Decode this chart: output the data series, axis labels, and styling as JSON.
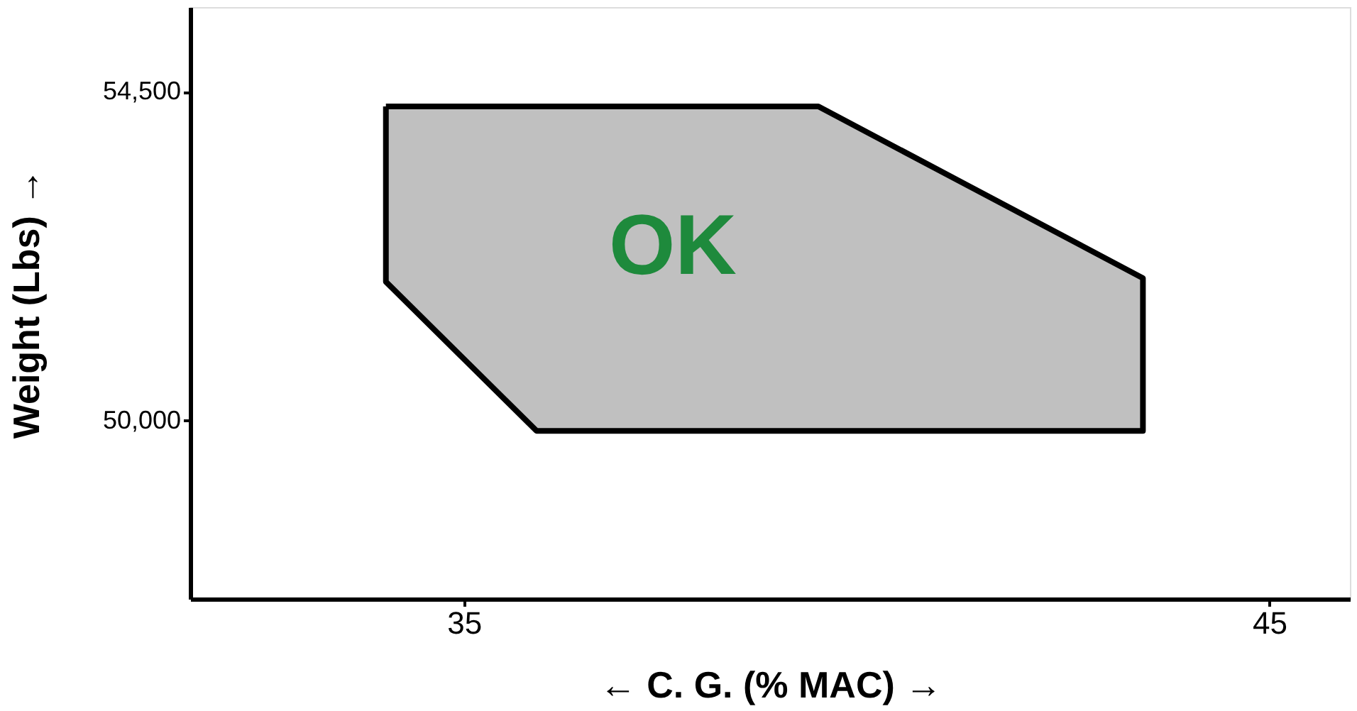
{
  "chart_data": {
    "type": "area",
    "xlabel": "← C. G. (% MAC) →",
    "ylabel": "Weight (Lbs) →",
    "xlim": [
      31.6,
      46
    ],
    "xticks": [
      {
        "value": 35,
        "label": "35"
      },
      {
        "value": 45,
        "label": "45"
      }
    ],
    "ylim": [
      47560,
      55660
    ],
    "yticks": [
      {
        "value": 50000,
        "label": "50,000"
      },
      {
        "value": 54500,
        "label": "54,500"
      }
    ],
    "grid": false,
    "series": [
      {
        "color": "#c0c0c0",
        "x": [
          34.03,
          39.4,
          43.43,
          43.43,
          35.9,
          34.03,
          34.03
        ],
        "values": [
          54300,
          54300,
          51950,
          49860,
          49860,
          51900,
          54300
        ]
      }
    ],
    "annotations": [
      "OK"
    ]
  }
}
